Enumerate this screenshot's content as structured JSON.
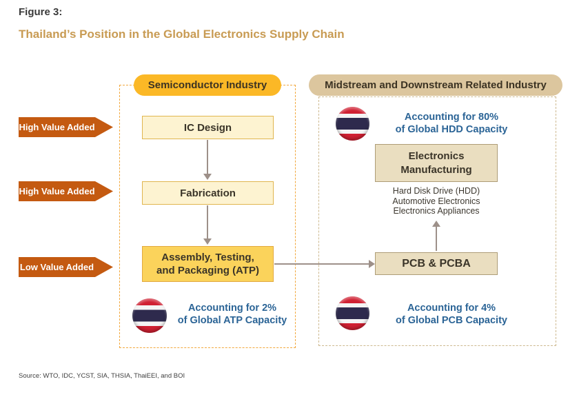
{
  "figure": {
    "label": "Figure 3:",
    "title": "Thailand’s Position in the Global Electronics Supply Chain"
  },
  "value_labels": {
    "row1": "High Value Added",
    "row2": "High Value Added",
    "row3": "Low Value Added"
  },
  "sections": {
    "semiconductor": {
      "header": "Semiconductor Industry",
      "boxes": {
        "ic_design": "IC Design",
        "fabrication": "Fabrication",
        "atp": {
          "line1": "Assembly, Testing,",
          "line2": "and Packaging (ATP)"
        }
      },
      "callout": {
        "line1": "Accounting for 2%",
        "line2": "of Global ATP Capacity"
      }
    },
    "midstream": {
      "header": "Midstream and Downstream Related Industry",
      "boxes": {
        "electronics_manufacturing": {
          "line1": "Electronics",
          "line2": "Manufacturing"
        },
        "pcb": "PCB & PCBA"
      },
      "products": [
        "Hard Disk Drive (HDD)",
        "Automotive Electronics",
        "Electronics Appliances"
      ],
      "callout_hdd": {
        "line1": "Accounting for 80%",
        "line2": "of Global HDD Capacity"
      },
      "callout_pcb": {
        "line1": "Accounting for 4%",
        "line2": "of Global PCB Capacity"
      }
    }
  },
  "icons": {
    "thai_flag": "thailand-flag"
  },
  "source": "Source: WTO, IDC, YCST, SIA, THSIA, ThaiEEI, and BOI",
  "colors": {
    "accent_yellow": "#fbb826",
    "accent_tan": "#dcc69e",
    "box_light_yellow": "#fdf3d1",
    "box_yellow": "#fbd35b",
    "box_tan": "#eadec0",
    "value_arrow_orange": "#c45a11",
    "callout_blue": "#2b6496",
    "connector_gray": "#9d9089",
    "title_tan": "#c89b53",
    "flag_red": "#d02032",
    "flag_navy": "#2e2a4d"
  }
}
